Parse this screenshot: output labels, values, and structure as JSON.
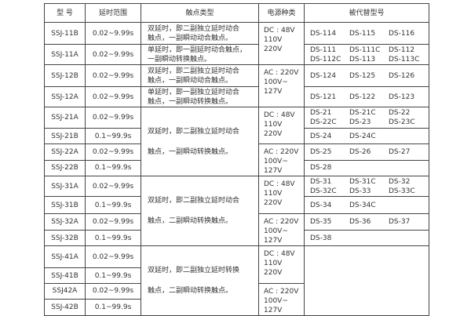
{
  "headers": [
    "型 号",
    "延时范围",
    "触点类型",
    "电源种类",
    "被代替型号"
  ],
  "rows": [
    {
      "model": "SSJ-11B",
      "range": "0.02~9.99s"
    },
    {
      "model": "SSJ-11A",
      "range": "0.02~9.99s"
    },
    {
      "model": "SSJ-12B",
      "range": "0.02~9.99s"
    },
    {
      "model": "SSJ-12A",
      "range": "0.02~9.99s"
    },
    {
      "model": "SSJ-21A",
      "range": "0.02~9.99s"
    },
    {
      "model": "SSJ-21B",
      "range": "0.1~99.9s"
    },
    {
      "model": "SSJ-22A",
      "range": "0.02~9.99s"
    },
    {
      "model": "SSJ-22B",
      "range": "0.1~99.9s"
    },
    {
      "model": "SSJ-31A",
      "range": "0.02~9.99s"
    },
    {
      "model": "SSJ-31B",
      "range": "0.1~99.9s"
    },
    {
      "model": "SSJ-32A",
      "range": "0.02~9.99s"
    },
    {
      "model": "SSJ-32B",
      "range": "0.1~99.9s"
    },
    {
      "model": "SSJ-41A",
      "range": "0.02~9.99s"
    },
    {
      "model": "SSJ-41B",
      "range": "0.1~99.9s"
    },
    {
      "model": "SSJ42A",
      "range": "0.02~9.99s"
    },
    {
      "model": "SSJ-42B",
      "range": "0.1~99.9s"
    }
  ],
  "contacts": [
    {
      "start": 0,
      "span": 1,
      "lines": [
        "双延时，即二副独立延时动合",
        "触点，一副瞬动动合触点。"
      ]
    },
    {
      "start": 1,
      "span": 1,
      "lines": [
        "单延时，即一副延时动合触点，",
        "一副瞬动转换触点。"
      ]
    },
    {
      "start": 2,
      "span": 1,
      "lines": [
        "双延时，即二副独立延时动合",
        "触点，一副瞬动动合触点。"
      ]
    },
    {
      "start": 3,
      "span": 1,
      "lines": [
        "单延时，即一副独立延时动合",
        "触点，一副瞬动转换触点。"
      ]
    },
    {
      "start": 4,
      "span": 4,
      "lines": [
        "双延时，即二副独立延时动合",
        "触点，一副瞬动转换触点。"
      ]
    },
    {
      "start": 8,
      "span": 4,
      "lines": [
        "双延时，即二副独立延时动合",
        "触点，二副瞬动转换触点。"
      ]
    },
    {
      "start": 12,
      "span": 4,
      "lines": [
        "双延时，即二副独立延时转换",
        "触点，二副瞬动转换触点。"
      ]
    }
  ],
  "power": [
    {
      "start": 0,
      "span": 2,
      "lines": [
        "DC : 48V",
        "110V",
        "220V"
      ]
    },
    {
      "start": 2,
      "span": 2,
      "lines": [
        "AC : 220V",
        "100V~",
        "127V"
      ]
    },
    {
      "start": 4,
      "span": 2,
      "lines": [
        "DC : 48V",
        "110V",
        "220V"
      ]
    },
    {
      "start": 6,
      "span": 2,
      "lines": [
        "AC : 220V",
        "100V~",
        "127V"
      ]
    },
    {
      "start": 8,
      "span": 2,
      "lines": [
        "DC : 48V",
        "110V",
        "220V"
      ]
    },
    {
      "start": 10,
      "span": 2,
      "lines": [
        "AC : 220V",
        "100V~",
        "127V"
      ]
    },
    {
      "start": 12,
      "span": 2,
      "lines": [
        "DC : 48V",
        "110V",
        "220V"
      ]
    },
    {
      "start": 14,
      "span": 2,
      "lines": [
        "AC : 220V",
        "100V~",
        "127V"
      ]
    }
  ],
  "replacements": [
    {
      "start": 0,
      "span": 1,
      "items": [
        "DS-114",
        "DS-115",
        "DS-116"
      ]
    },
    {
      "start": 1,
      "span": 1,
      "items": [
        "DS-111",
        "DS-111C",
        "DS-112",
        "DS-112C",
        "DS-113",
        "DS-113C"
      ]
    },
    {
      "start": 2,
      "span": 1,
      "items": [
        "DS-124",
        "DS-125",
        "DS-126"
      ]
    },
    {
      "start": 3,
      "span": 1,
      "items": [
        "DS-121",
        "DS-122",
        "DS-123"
      ]
    },
    {
      "start": 4,
      "span": 1,
      "items": [
        "DS-21",
        "DS-21C",
        "DS-22",
        "DS-22C",
        "DS-23",
        "DS-23C"
      ]
    },
    {
      "start": 5,
      "span": 1,
      "items": [
        "DS-24",
        "DS-24C"
      ]
    },
    {
      "start": 6,
      "span": 1,
      "items": [
        "DS-25",
        "DS-26",
        "DS-27"
      ]
    },
    {
      "start": 7,
      "span": 1,
      "items": [
        "DS-28"
      ]
    },
    {
      "start": 8,
      "span": 1,
      "items": [
        "DS-31",
        "DS-31C",
        "DS-32",
        "DS-32C",
        "DS-33",
        "DS-33C"
      ]
    },
    {
      "start": 9,
      "span": 1,
      "items": [
        "DS-34",
        "DS-34C"
      ]
    },
    {
      "start": 10,
      "span": 1,
      "items": [
        "DS-35",
        "DS-36",
        "DS-37"
      ]
    },
    {
      "start": 11,
      "span": 1,
      "items": [
        "DS-38"
      ]
    },
    {
      "start": 12,
      "span": 4,
      "items": []
    }
  ]
}
